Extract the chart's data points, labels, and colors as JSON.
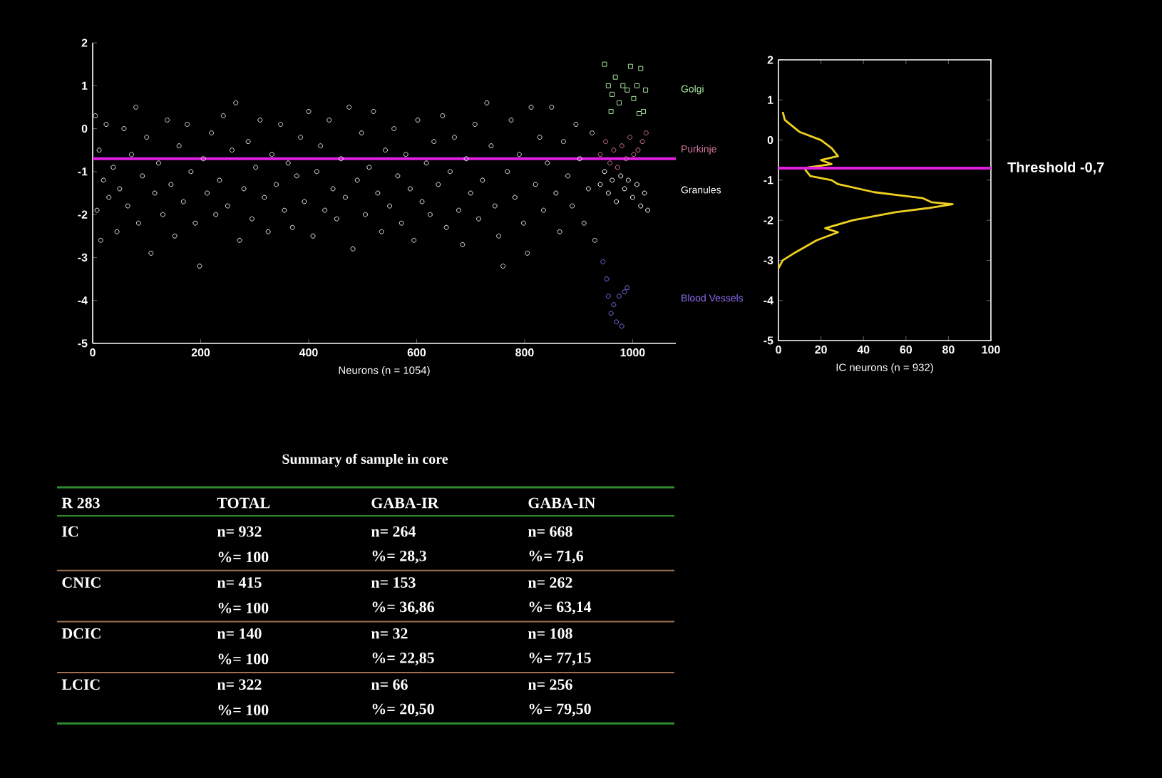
{
  "chart_data": [
    {
      "type": "scatter",
      "xlabel": "Neurons (n = 1054)",
      "xlim": [
        0,
        1080
      ],
      "ylim": [
        -5,
        2
      ],
      "xticks": [
        0,
        200,
        400,
        600,
        800,
        1000
      ],
      "yticks": [
        -5,
        -4,
        -3,
        -2,
        -1,
        0,
        1,
        2
      ],
      "ref_lines": [
        {
          "axis": "y",
          "value": -0.7,
          "color": "#e020e0"
        }
      ],
      "series": [
        {
          "color": "#e8e8e8",
          "marker": "circle",
          "x": [
            5,
            8,
            12,
            15,
            20,
            25,
            30,
            38,
            45,
            50,
            58,
            65,
            72,
            80,
            85,
            92,
            100,
            108,
            115,
            122,
            130,
            138,
            145,
            152,
            160,
            168,
            175,
            182,
            190,
            198,
            205,
            212,
            220,
            228,
            235,
            242,
            250,
            258,
            265,
            272,
            280,
            288,
            295,
            302,
            310,
            318,
            325,
            332,
            340,
            348,
            355,
            362,
            370,
            378,
            385,
            392,
            400,
            408,
            415,
            422,
            430,
            438,
            445,
            452,
            460,
            468,
            475,
            482,
            490,
            498,
            505,
            512,
            520,
            528,
            535,
            542,
            550,
            558,
            565,
            572,
            580,
            588,
            595,
            602,
            610,
            618,
            625,
            632,
            640,
            648,
            655,
            662,
            670,
            678,
            685,
            692,
            700,
            708,
            715,
            722,
            730,
            738,
            745,
            752,
            760,
            768,
            775,
            782,
            790,
            798,
            805,
            812,
            820,
            828,
            835,
            842,
            850,
            858,
            865,
            872,
            880,
            888,
            895,
            902,
            910,
            918,
            925,
            930
          ],
          "values": [
            0.3,
            -1.9,
            -0.5,
            -2.6,
            -1.2,
            0.1,
            -1.6,
            -0.9,
            -2.4,
            -1.4,
            0,
            -1.8,
            -0.6,
            0.5,
            -2.2,
            -1.1,
            -0.2,
            -2.9,
            -1.5,
            -0.8,
            -2.0,
            0.2,
            -1.3,
            -2.5,
            -0.4,
            -1.7,
            0.1,
            -1.0,
            -2.2,
            -3.2,
            -0.7,
            -1.5,
            -0.1,
            -2.0,
            -1.2,
            0.3,
            -1.8,
            -0.5,
            0.6,
            -2.6,
            -1.4,
            -0.3,
            -2.1,
            -0.9,
            0.2,
            -1.6,
            -2.4,
            -0.6,
            -1.3,
            0.1,
            -1.9,
            -0.8,
            -2.3,
            -1.1,
            -0.2,
            -1.7,
            0.4,
            -2.5,
            -1.0,
            -0.4,
            -1.9,
            0.2,
            -1.4,
            -2.1,
            -0.7,
            -1.6,
            0.5,
            -2.8,
            -1.2,
            -0.1,
            -2.0,
            -0.9,
            0.4,
            -1.5,
            -2.4,
            -0.5,
            -1.8,
            0.0,
            -1.1,
            -2.2,
            -0.6,
            -1.4,
            -2.6,
            0.2,
            -1.7,
            -0.8,
            -2.0,
            -0.3,
            -1.3,
            0.3,
            -2.3,
            -1.0,
            -0.2,
            -1.9,
            -2.7,
            -0.7,
            -1.5,
            0.1,
            -2.1,
            -1.2,
            0.6,
            -0.4,
            -1.8,
            -2.5,
            -3.2,
            -1.0,
            0.2,
            -1.6,
            -0.6,
            -2.2,
            -2.9,
            0.5,
            -1.3,
            -0.2,
            -1.9,
            -0.8,
            0.5,
            -1.5,
            -2.4,
            -0.3,
            -1.1,
            -1.8,
            0.1,
            -0.7,
            -2.2,
            -1.4,
            -0.1,
            -2.6
          ]
        },
        {
          "name": "Golgi",
          "color": "#a8e8a0",
          "marker": "square",
          "x": [
            948,
            955,
            960,
            962,
            968,
            975,
            982,
            990,
            996,
            1002,
            1008,
            1012,
            1015,
            1020,
            1024
          ],
          "values": [
            1.5,
            1.0,
            0.4,
            0.8,
            1.2,
            0.6,
            1.0,
            0.9,
            1.45,
            0.7,
            1.0,
            0.35,
            1.4,
            0.4,
            0.9
          ]
        },
        {
          "name": "Purkinje",
          "color": "#d87aa0",
          "marker": "circle",
          "x": [
            940,
            950,
            958,
            965,
            972,
            980,
            988,
            995,
            1002,
            1010,
            1018,
            1025
          ],
          "values": [
            -0.6,
            -0.3,
            -0.8,
            -0.5,
            -0.9,
            -0.4,
            -0.7,
            -0.2,
            -0.6,
            -0.5,
            -0.3,
            -0.1
          ]
        },
        {
          "name": "Granules",
          "color": "#ffffff",
          "marker": "circle",
          "x": [
            940,
            948,
            955,
            962,
            970,
            978,
            985,
            992,
            1000,
            1008,
            1015,
            1022,
            1028
          ],
          "values": [
            -1.3,
            -1.0,
            -1.5,
            -1.2,
            -1.7,
            -1.1,
            -1.4,
            -1.2,
            -1.6,
            -1.3,
            -1.8,
            -1.5,
            -1.9
          ]
        },
        {
          "name": "Blood Vessels",
          "color": "#8a6cf0",
          "marker": "circle",
          "x": [
            945,
            952,
            955,
            960,
            965,
            970,
            975,
            980,
            985,
            990
          ],
          "values": [
            -3.1,
            -3.5,
            -3.9,
            -4.3,
            -4.1,
            -4.5,
            -3.9,
            -4.6,
            -3.8,
            -3.7
          ]
        }
      ]
    },
    {
      "type": "line",
      "xlabel": "IC neurons (n = 932)",
      "xlim": [
        0,
        100
      ],
      "ylim": [
        -5,
        2
      ],
      "xticks": [
        0,
        20,
        40,
        60,
        80,
        100
      ],
      "yticks": [
        -5,
        -4,
        -3,
        -2,
        -1,
        0,
        1,
        2
      ],
      "ref_lines": [
        {
          "axis": "y",
          "value": -0.7,
          "label": "Threshold -0,7",
          "color": "#e020e0"
        }
      ],
      "series": [
        {
          "color": "#f0d020",
          "x": [
            2,
            3,
            10,
            20,
            25,
            28,
            20,
            25,
            12,
            15,
            25,
            28,
            45,
            68,
            72,
            82,
            70,
            55,
            35,
            22,
            28,
            18,
            8,
            2,
            0
          ],
          "values": [
            0.7,
            0.5,
            0.2,
            0,
            -0.2,
            -0.4,
            -0.5,
            -0.6,
            -0.7,
            -0.9,
            -1.0,
            -1.1,
            -1.3,
            -1.45,
            -1.55,
            -1.6,
            -1.7,
            -1.8,
            -2.0,
            -2.2,
            -2.3,
            -2.5,
            -2.8,
            -3.0,
            -3.2
          ]
        }
      ]
    },
    {
      "type": "other",
      "title": "Summary of sample in core",
      "categories": [
        "R 283",
        "TOTAL",
        "GABA-IR",
        "GABA-IN"
      ],
      "y_categories": [
        "IC",
        "CNIC",
        "DCIC",
        "LCIC"
      ],
      "cell_labels": [
        [
          "n= 932",
          "n= 264",
          "n= 668"
        ],
        [
          "%= 100",
          "%= 28,3",
          "%= 71,6"
        ],
        [
          "n= 415",
          "n= 153",
          "n= 262"
        ],
        [
          "%= 100",
          "%= 36,86",
          "%= 63,14"
        ],
        [
          "n= 140",
          "n= 32",
          "n= 108"
        ],
        [
          "%= 100",
          "%= 22,85",
          "%= 77,15"
        ],
        [
          "n= 322",
          "n= 66",
          "n= 256"
        ],
        [
          "%= 100",
          "%= 20,50",
          "%= 79,50"
        ]
      ]
    }
  ]
}
